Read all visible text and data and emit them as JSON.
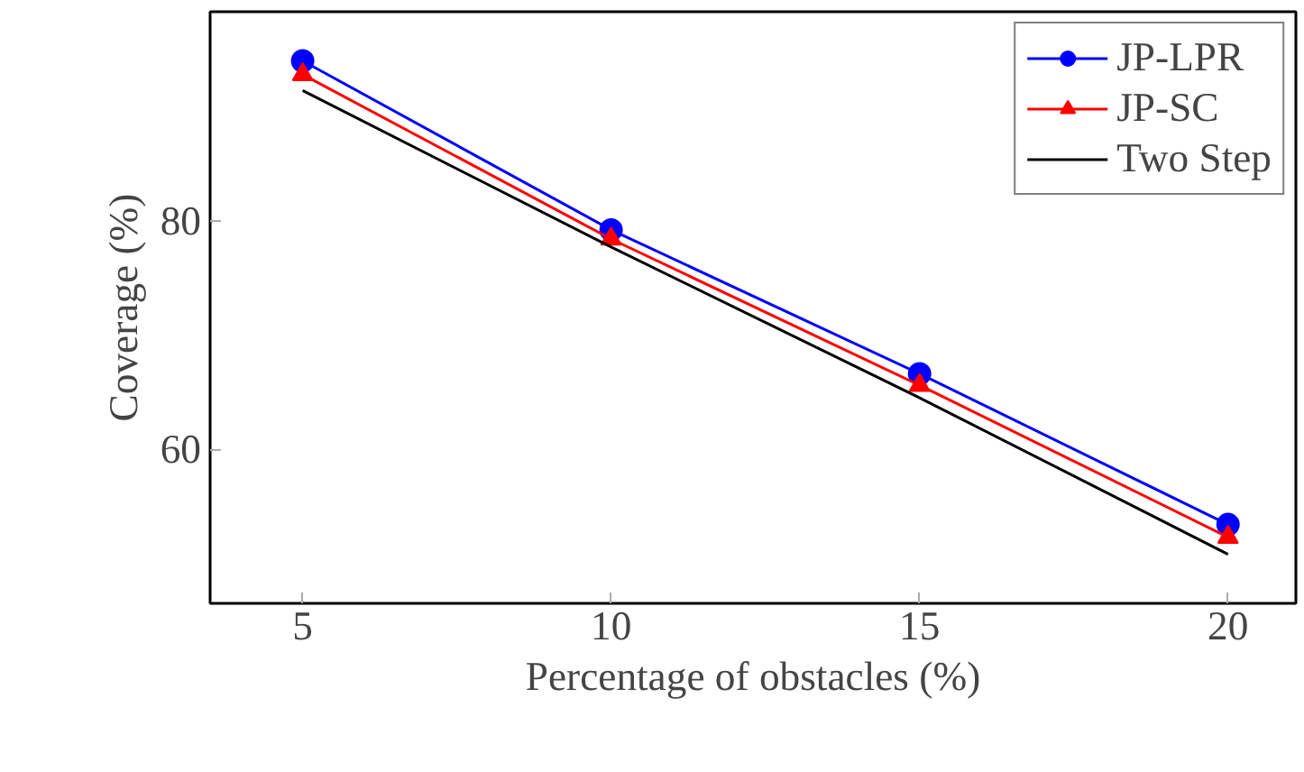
{
  "chart_data": {
    "type": "line",
    "xlabel": "Percentage of obstacles (%)",
    "ylabel": "Coverage (%)",
    "x": [
      5,
      10,
      15,
      20
    ],
    "series": [
      {
        "name": "JP-LPR",
        "color": "#0000ff",
        "marker": "circle",
        "values": [
          94.0,
          79.2,
          66.6,
          53.4
        ]
      },
      {
        "name": "JP-SC",
        "color": "#ff0000",
        "marker": "triangle",
        "values": [
          92.8,
          78.4,
          65.6,
          52.3
        ]
      },
      {
        "name": "Two Step",
        "color": "#000000",
        "marker": "none",
        "values": [
          91.4,
          77.7,
          64.5,
          50.8
        ]
      }
    ],
    "xlim": [
      3.5,
      21.1
    ],
    "ylim": [
      46.5,
      98.3
    ],
    "xticks": [
      5,
      10,
      15,
      20
    ],
    "yticks": [
      60,
      80
    ],
    "grid": false,
    "legend": "top right",
    "line_style": "solid"
  }
}
